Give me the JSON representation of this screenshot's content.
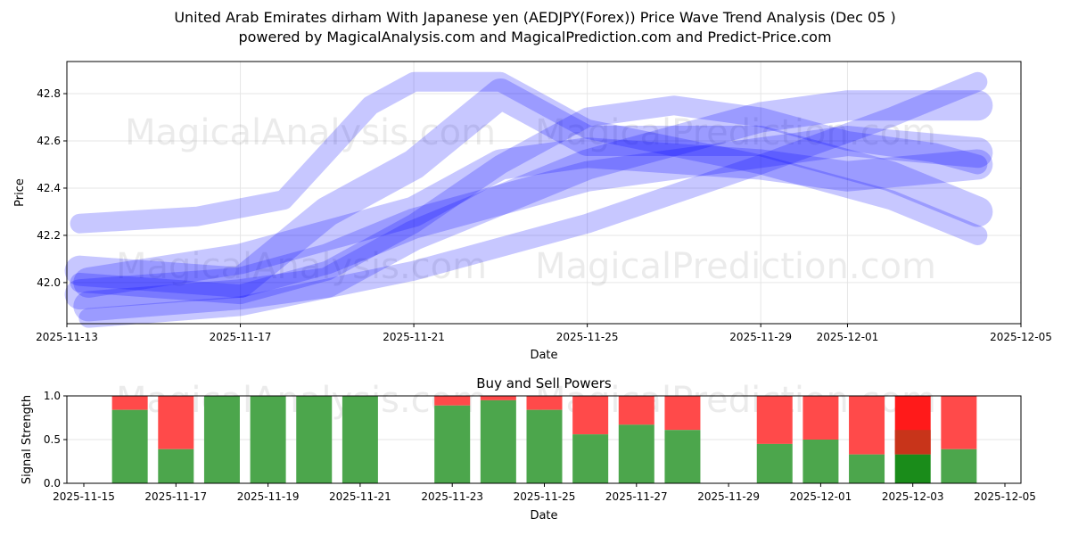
{
  "title_line1": "United Arab Emirates dirham With Japanese yen (AEDJPY(Forex)) Price Wave Trend Analysis (Dec 05 )",
  "title_line2": "powered by MagicalAnalysis.com and MagicalPrediction.com and Predict-Price.com",
  "watermarks": [
    "MagicalAnalysis.com",
    "MagicalPrediction.com"
  ],
  "chart_data": [
    {
      "type": "line",
      "title": "",
      "xlabel": "Date",
      "ylabel": "Price",
      "xlim": [
        "2025-11-13",
        "2025-12-05"
      ],
      "ylim": [
        41.826,
        42.936
      ],
      "xticks": [
        "2025-11-13",
        "2025-11-17",
        "2025-11-21",
        "2025-11-25",
        "2025-11-29",
        "2025-12-01",
        "2025-12-05"
      ],
      "xtick_days": [
        0,
        4,
        8,
        12,
        16,
        18,
        22
      ],
      "yticks": [
        "42.0",
        "42.2",
        "42.4",
        "42.6",
        "42.8"
      ],
      "color": "#0000ff",
      "series": [
        {
          "name": "wave1",
          "x": [
            0.3,
            4,
            6,
            8,
            10,
            12,
            14,
            16,
            18,
            20,
            21
          ],
          "y": [
            41.95,
            42.0,
            42.1,
            42.25,
            42.35,
            42.5,
            42.6,
            42.7,
            42.75,
            42.75,
            42.75
          ]
        },
        {
          "name": "wave2",
          "x": [
            0.3,
            4,
            6,
            8,
            10,
            12,
            14,
            16,
            18,
            20,
            21
          ],
          "y": [
            42.0,
            41.95,
            42.05,
            42.25,
            42.5,
            42.7,
            42.75,
            42.7,
            42.6,
            42.55,
            42.5
          ]
        },
        {
          "name": "wave3",
          "x": [
            0.5,
            4,
            6,
            8,
            10,
            12,
            14,
            16,
            18,
            21
          ],
          "y": [
            41.9,
            41.95,
            42.0,
            42.2,
            42.35,
            42.45,
            42.5,
            42.55,
            42.6,
            42.55
          ]
        },
        {
          "name": "wave4",
          "x": [
            0.3,
            3,
            5,
            7,
            8,
            10,
            12,
            16,
            19,
            21
          ],
          "y": [
            42.25,
            42.28,
            42.35,
            42.75,
            42.85,
            42.85,
            42.65,
            42.5,
            42.35,
            42.2
          ]
        },
        {
          "name": "wave5",
          "x": [
            0.3,
            4,
            6,
            8,
            10,
            12,
            16,
            19,
            21
          ],
          "y": [
            42.05,
            42.0,
            42.3,
            42.5,
            42.8,
            42.6,
            42.6,
            42.45,
            42.3
          ]
        },
        {
          "name": "wave6",
          "x": [
            0.5,
            4,
            8,
            12,
            16,
            19,
            21
          ],
          "y": [
            41.85,
            41.9,
            42.05,
            42.25,
            42.5,
            42.7,
            42.85
          ]
        },
        {
          "name": "wave7",
          "x": [
            0.5,
            4,
            8,
            10,
            12,
            16,
            18,
            21
          ],
          "y": [
            42.0,
            42.1,
            42.3,
            42.5,
            42.55,
            42.5,
            42.45,
            42.5
          ]
        }
      ]
    },
    {
      "type": "bar",
      "title": "Buy and Sell Powers",
      "xlabel": "Date",
      "ylabel": "Signal Strength",
      "ylim": [
        0,
        1
      ],
      "yticks": [
        "0.0",
        "0.5",
        "1.0"
      ],
      "xticks": [
        "2025-11-15",
        "2025-11-17",
        "2025-11-19",
        "2025-11-21",
        "2025-11-23",
        "2025-11-25",
        "2025-11-27",
        "2025-11-29",
        "2025-12-01",
        "2025-12-03",
        "2025-12-05"
      ],
      "categories": [
        "2025-11-16",
        "2025-11-17",
        "2025-11-18",
        "2025-11-19",
        "2025-11-20",
        "2025-11-21",
        "2025-11-23",
        "2025-11-24",
        "2025-11-25",
        "2025-11-26",
        "2025-11-27",
        "2025-11-28",
        "2025-11-30",
        "2025-12-01",
        "2025-12-02",
        "2025-12-03",
        "2025-12-04"
      ],
      "day_offsets": [
        1,
        2,
        3,
        4,
        5,
        6,
        8,
        9,
        10,
        11,
        12,
        13,
        15,
        16,
        17,
        18,
        19
      ],
      "buy": [
        0.84,
        0.39,
        1,
        1,
        1,
        1,
        0.89,
        0.95,
        0.84,
        0.56,
        0.67,
        0.61,
        0.45,
        0.5,
        0.33,
        0.33,
        0.39
      ],
      "buy_color": "#4ca64c",
      "sell_color": "#ff4a4a",
      "highlight_index": 15
    }
  ]
}
